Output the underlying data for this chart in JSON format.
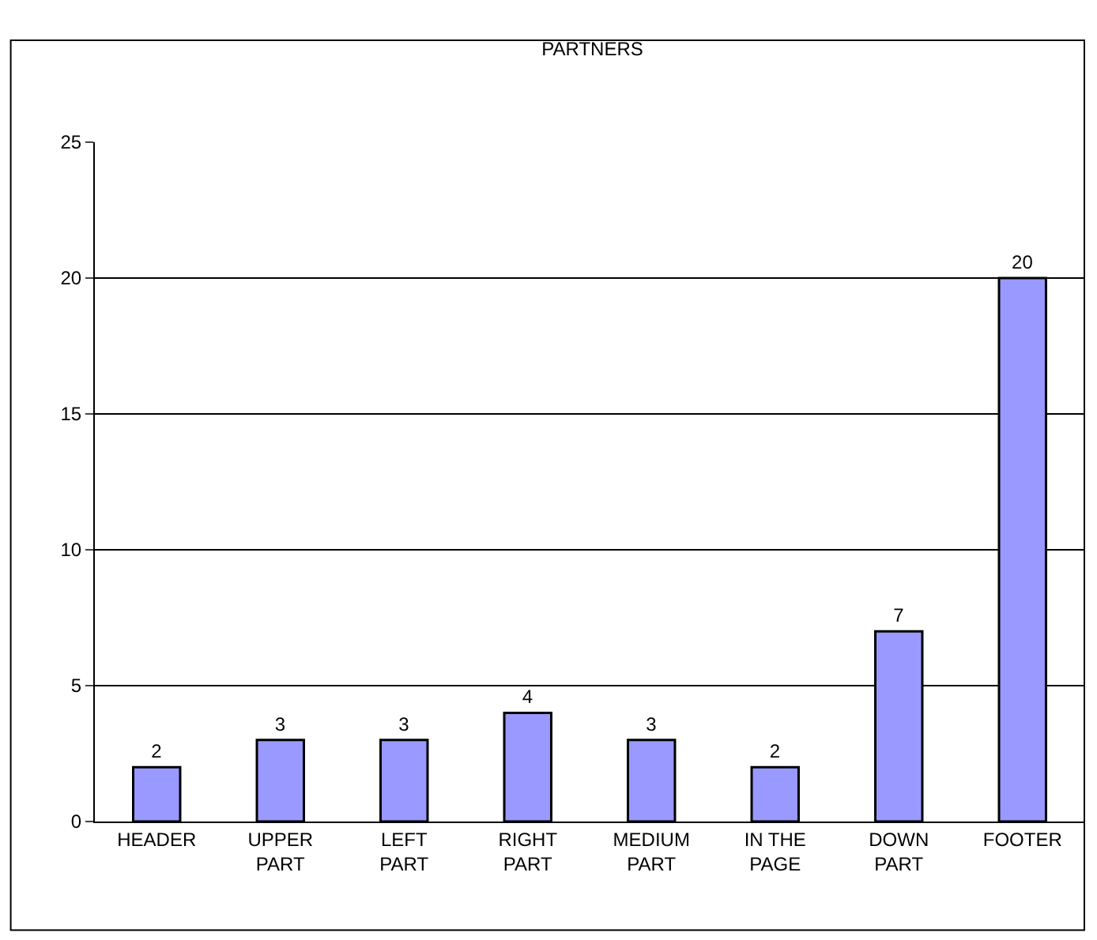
{
  "chart_data": {
    "type": "bar",
    "title": "PARTNERS",
    "categories": [
      "HEADER",
      "UPPER PART",
      "LEFT PART",
      "RIGHT PART",
      "MEDIUM PART",
      "IN THE PAGE",
      "DOWN PART",
      "FOOTER"
    ],
    "values": [
      2,
      3,
      3,
      4,
      3,
      2,
      7,
      20
    ],
    "color": "#9999ff",
    "ylim": [
      0,
      25
    ],
    "yticks": [
      0,
      5,
      10,
      15,
      20,
      25
    ],
    "grid": "y",
    "data_labels": true,
    "legend": false
  }
}
